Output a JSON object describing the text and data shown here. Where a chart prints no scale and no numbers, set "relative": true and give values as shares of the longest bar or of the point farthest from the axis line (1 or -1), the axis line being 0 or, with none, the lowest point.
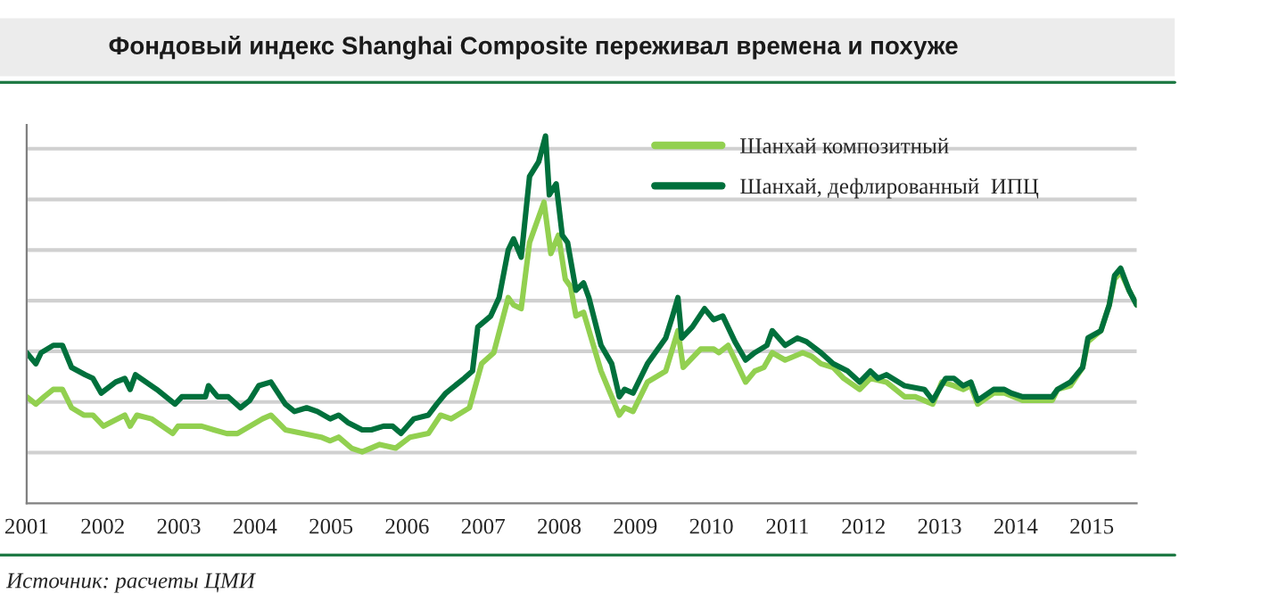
{
  "chart_data": {
    "type": "line",
    "title": "Фондовый индекс Shanghai Composite переживал времена и похуже",
    "relative": true,
    "grid": "y",
    "legend": "top right",
    "xlim": [
      2001,
      2015.59
    ],
    "xticks": [
      2001,
      2002,
      2003,
      2004,
      2005,
      2006,
      2007,
      2008,
      2009,
      2010,
      2011,
      2012,
      2013,
      2014,
      2015
    ],
    "annotations": [
      "Источник: расчеты ЦМИ"
    ],
    "series": [
      {
        "name": "Шанхай композитный",
        "color": "#92d050",
        "x": [
          2001.0,
          2001.12,
          2001.23,
          2001.35,
          2001.47,
          2001.59,
          2001.75,
          2001.87,
          2002.01,
          2002.29,
          2002.36,
          2002.45,
          2002.64,
          2002.92,
          2002.99,
          2003.3,
          2003.46,
          2003.63,
          2003.77,
          2004.1,
          2004.21,
          2004.4,
          2004.63,
          2004.87,
          2004.99,
          2005.1,
          2005.27,
          2005.41,
          2005.64,
          2005.85,
          2006.04,
          2006.28,
          2006.44,
          2006.58,
          2006.82,
          2006.98,
          2007.14,
          2007.33,
          2007.4,
          2007.5,
          2007.61,
          2007.8,
          2007.89,
          2007.99,
          2008.08,
          2008.15,
          2008.22,
          2008.32,
          2008.55,
          2008.79,
          2008.86,
          2008.97,
          2009.16,
          2009.4,
          2009.56,
          2009.63,
          2009.86,
          2010.03,
          2010.1,
          2010.22,
          2010.45,
          2010.57,
          2010.69,
          2010.8,
          2010.97,
          2011.2,
          2011.32,
          2011.44,
          2011.6,
          2011.74,
          2011.95,
          2012.09,
          2012.3,
          2012.54,
          2012.68,
          2012.91,
          2013.03,
          2013.19,
          2013.31,
          2013.41,
          2013.5,
          2013.71,
          2013.85,
          2014.09,
          2014.48,
          2014.55,
          2014.72,
          2014.88,
          2014.95,
          2015.12,
          2015.23,
          2015.3,
          2015.38,
          2015.49,
          2015.59
        ],
        "values": [
          0.29,
          0.27,
          0.29,
          0.31,
          0.31,
          0.26,
          0.24,
          0.24,
          0.21,
          0.24,
          0.21,
          0.24,
          0.23,
          0.19,
          0.21,
          0.21,
          0.2,
          0.19,
          0.19,
          0.23,
          0.24,
          0.2,
          0.19,
          0.18,
          0.17,
          0.18,
          0.15,
          0.14,
          0.16,
          0.15,
          0.18,
          0.19,
          0.24,
          0.23,
          0.26,
          0.38,
          0.41,
          0.56,
          0.54,
          0.53,
          0.71,
          0.82,
          0.68,
          0.73,
          0.61,
          0.59,
          0.51,
          0.52,
          0.36,
          0.24,
          0.26,
          0.25,
          0.33,
          0.36,
          0.47,
          0.37,
          0.42,
          0.42,
          0.41,
          0.43,
          0.33,
          0.36,
          0.37,
          0.41,
          0.39,
          0.41,
          0.4,
          0.38,
          0.37,
          0.34,
          0.31,
          0.34,
          0.33,
          0.29,
          0.29,
          0.27,
          0.33,
          0.32,
          0.31,
          0.32,
          0.27,
          0.3,
          0.3,
          0.28,
          0.28,
          0.31,
          0.32,
          0.37,
          0.44,
          0.47,
          0.54,
          0.61,
          0.63,
          0.58,
          0.54
        ]
      },
      {
        "name": "Шанхай, дефлированный  ИПЦ",
        "color": "#00703c",
        "x": [
          2001.0,
          2001.12,
          2001.19,
          2001.35,
          2001.47,
          2001.59,
          2001.77,
          2001.87,
          2001.98,
          2002.17,
          2002.29,
          2002.36,
          2002.43,
          2002.57,
          2002.71,
          2002.95,
          2003.04,
          2003.35,
          2003.39,
          2003.51,
          2003.65,
          2003.81,
          2003.93,
          2004.05,
          2004.21,
          2004.4,
          2004.52,
          2004.68,
          2004.82,
          2004.99,
          2005.1,
          2005.22,
          2005.41,
          2005.53,
          2005.69,
          2005.81,
          2005.92,
          2006.09,
          2006.28,
          2006.39,
          2006.51,
          2006.75,
          2006.86,
          2006.93,
          2007.1,
          2007.21,
          2007.33,
          2007.4,
          2007.5,
          2007.61,
          2007.73,
          2007.82,
          2007.87,
          2007.96,
          2008.04,
          2008.11,
          2008.22,
          2008.32,
          2008.39,
          2008.55,
          2008.69,
          2008.79,
          2008.86,
          2008.97,
          2009.16,
          2009.4,
          2009.49,
          2009.56,
          2009.61,
          2009.75,
          2009.91,
          2010.03,
          2010.15,
          2010.31,
          2010.45,
          2010.57,
          2010.73,
          2010.8,
          2010.97,
          2011.13,
          2011.25,
          2011.44,
          2011.6,
          2011.79,
          2011.95,
          2012.09,
          2012.19,
          2012.3,
          2012.54,
          2012.8,
          2012.91,
          2013.08,
          2013.19,
          2013.31,
          2013.41,
          2013.5,
          2013.71,
          2013.85,
          2013.94,
          2014.09,
          2014.48,
          2014.55,
          2014.72,
          2014.88,
          2014.95,
          2015.12,
          2015.23,
          2015.3,
          2015.38,
          2015.49,
          2015.59
        ],
        "values": [
          0.41,
          0.38,
          0.41,
          0.43,
          0.43,
          0.37,
          0.35,
          0.34,
          0.3,
          0.33,
          0.34,
          0.31,
          0.35,
          0.33,
          0.31,
          0.27,
          0.29,
          0.29,
          0.32,
          0.29,
          0.29,
          0.26,
          0.28,
          0.32,
          0.33,
          0.27,
          0.25,
          0.26,
          0.25,
          0.23,
          0.24,
          0.22,
          0.2,
          0.2,
          0.21,
          0.21,
          0.19,
          0.23,
          0.24,
          0.27,
          0.3,
          0.34,
          0.36,
          0.48,
          0.51,
          0.56,
          0.69,
          0.72,
          0.67,
          0.89,
          0.93,
          1.0,
          0.84,
          0.87,
          0.73,
          0.71,
          0.58,
          0.6,
          0.56,
          0.43,
          0.38,
          0.29,
          0.31,
          0.3,
          0.38,
          0.45,
          0.51,
          0.56,
          0.45,
          0.48,
          0.53,
          0.5,
          0.51,
          0.44,
          0.39,
          0.41,
          0.43,
          0.47,
          0.43,
          0.45,
          0.44,
          0.41,
          0.38,
          0.36,
          0.33,
          0.36,
          0.34,
          0.35,
          0.32,
          0.31,
          0.28,
          0.34,
          0.34,
          0.32,
          0.33,
          0.28,
          0.31,
          0.31,
          0.3,
          0.29,
          0.29,
          0.31,
          0.33,
          0.37,
          0.45,
          0.47,
          0.54,
          0.62,
          0.64,
          0.58,
          0.54
        ]
      }
    ]
  }
}
